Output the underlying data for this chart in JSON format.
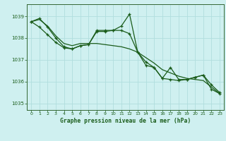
{
  "title": "Graphe pression niveau de la mer (hPa)",
  "bg_color": "#cff0f0",
  "grid_color": "#b0dede",
  "line_color": "#1a5c1a",
  "spine_color": "#336633",
  "xlim": [
    -0.5,
    23.5
  ],
  "ylim": [
    1034.7,
    1039.55
  ],
  "yticks": [
    1035,
    1036,
    1037,
    1038,
    1039
  ],
  "xticks": [
    0,
    1,
    2,
    3,
    4,
    5,
    6,
    7,
    8,
    9,
    10,
    11,
    12,
    13,
    14,
    15,
    16,
    17,
    18,
    19,
    20,
    21,
    22,
    23
  ],
  "series1": {
    "x": [
      0,
      1,
      2,
      3,
      4,
      5,
      6,
      7,
      8,
      9,
      10,
      11,
      12,
      13,
      14,
      15,
      16,
      17,
      18,
      19,
      20,
      21,
      22,
      23
    ],
    "y": [
      1038.75,
      1038.85,
      1038.55,
      1038.1,
      1037.75,
      1037.65,
      1037.75,
      1037.75,
      1037.75,
      1037.7,
      1037.65,
      1037.6,
      1037.5,
      1037.35,
      1037.1,
      1036.85,
      1036.55,
      1036.4,
      1036.25,
      1036.15,
      1036.1,
      1036.05,
      1035.75,
      1035.45
    ]
  },
  "series2": {
    "x": [
      0,
      1,
      2,
      3,
      4,
      5,
      6,
      7,
      8,
      9,
      10,
      11,
      12,
      13,
      14,
      15,
      16,
      17,
      18,
      19,
      20,
      21,
      22,
      23
    ],
    "y": [
      1038.75,
      1038.5,
      1038.15,
      1037.8,
      1037.55,
      1037.5,
      1037.65,
      1037.7,
      1038.3,
      1038.3,
      1038.35,
      1038.35,
      1038.2,
      1037.35,
      1036.9,
      1036.65,
      1036.15,
      1036.1,
      1036.05,
      1036.1,
      1036.2,
      1036.3,
      1035.85,
      1035.5
    ]
  },
  "series3": {
    "x": [
      0,
      1,
      2,
      3,
      4,
      5,
      6,
      7,
      8,
      9,
      10,
      11,
      12,
      13,
      14,
      15,
      16,
      17,
      18,
      19,
      20,
      21,
      22,
      23
    ],
    "y": [
      1038.75,
      1038.9,
      1038.5,
      1038.0,
      1037.6,
      1037.5,
      1037.65,
      1037.7,
      1038.35,
      1038.35,
      1038.35,
      1038.55,
      1039.1,
      1037.35,
      1036.75,
      1036.65,
      1036.15,
      1036.65,
      1036.1,
      1036.1,
      1036.2,
      1036.3,
      1035.65,
      1035.45
    ]
  }
}
